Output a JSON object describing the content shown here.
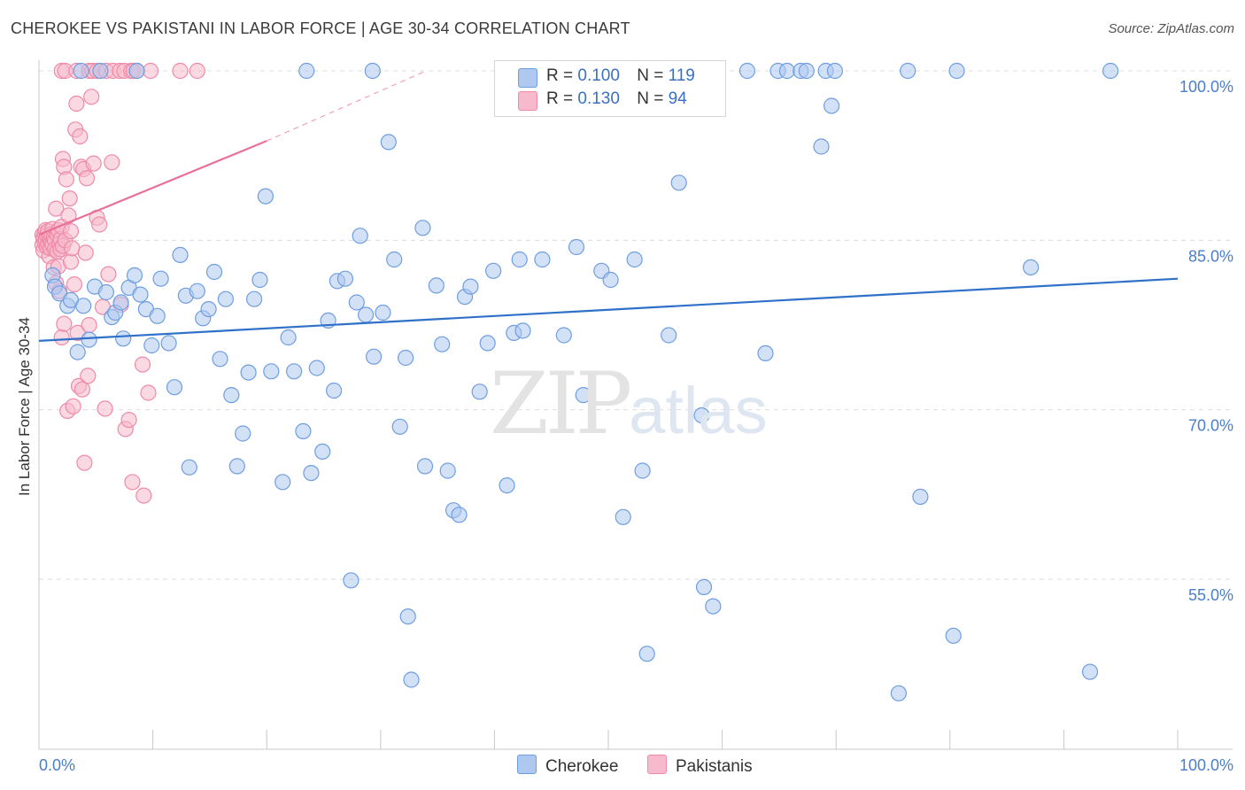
{
  "title": "CHEROKEE VS PAKISTANI IN LABOR FORCE | AGE 30-34 CORRELATION CHART",
  "source": "Source: ZipAtlas.com",
  "watermark": {
    "zip": "ZIP",
    "atlas": "atlas"
  },
  "legend": {
    "cherokee": {
      "r_label": "R = ",
      "r_value": "0.100",
      "n_label": "N = ",
      "n_value": "119"
    },
    "pakistani": {
      "r_label": "R = ",
      "r_value": "0.130",
      "n_label": "N = ",
      "n_value": "94"
    }
  },
  "bottom_legend": {
    "cherokee": "Cherokee",
    "pakistanis": "Pakistanis"
  },
  "colors": {
    "cherokee_fill": "#aec8f0",
    "cherokee_stroke": "#6e9ee0",
    "cherokee_line": "#2f70c8",
    "pakistani_fill": "#f7b9cc",
    "pakistani_stroke": "#ee8aa8",
    "pakistani_line": "#e8709a",
    "axis_text": "#4a7ecb",
    "grid": "#dcdcdc"
  },
  "chart_data": {
    "type": "scatter",
    "title": "CHEROKEE VS PAKISTANI IN LABOR FORCE | AGE 30-34 CORRELATION CHART",
    "xlabel": "",
    "ylabel": "In Labor Force | Age 30-34",
    "xlim": [
      0,
      100
    ],
    "ylim": [
      40.5,
      101.5
    ],
    "x_tick_labels": [
      "0.0%",
      "100.0%"
    ],
    "y_ticks": [
      100,
      85,
      70,
      55
    ],
    "y_tick_labels": [
      "100.0%",
      "85.0%",
      "70.0%",
      "55.0%"
    ],
    "series": [
      {
        "name": "Cherokee",
        "r": 0.1,
        "n": 119,
        "trend": {
          "x": [
            0,
            100
          ],
          "y": [
            76.1,
            81.6
          ]
        },
        "points": [
          [
            1.2,
            81.9
          ],
          [
            1.4,
            80.9
          ],
          [
            1.8,
            80.3
          ],
          [
            2.5,
            79.2
          ],
          [
            2.8,
            79.7
          ],
          [
            3.4,
            75.1
          ],
          [
            3.9,
            79.2
          ],
          [
            4.4,
            76.2
          ],
          [
            4.9,
            80.9
          ],
          [
            5.9,
            80.4
          ],
          [
            6.4,
            78.2
          ],
          [
            6.7,
            78.6
          ],
          [
            7.2,
            79.5
          ],
          [
            7.4,
            76.3
          ],
          [
            7.9,
            80.8
          ],
          [
            8.4,
            81.9
          ],
          [
            8.9,
            80.2
          ],
          [
            9.4,
            78.9
          ],
          [
            9.9,
            75.7
          ],
          [
            10.4,
            78.3
          ],
          [
            10.7,
            81.6
          ],
          [
            11.4,
            75.9
          ],
          [
            11.9,
            72.0
          ],
          [
            12.4,
            83.7
          ],
          [
            12.9,
            80.1
          ],
          [
            13.2,
            64.9
          ],
          [
            13.9,
            80.5
          ],
          [
            14.4,
            78.1
          ],
          [
            14.9,
            78.9
          ],
          [
            15.4,
            82.2
          ],
          [
            15.9,
            74.5
          ],
          [
            16.4,
            79.8
          ],
          [
            16.9,
            71.3
          ],
          [
            17.4,
            65.0
          ],
          [
            17.9,
            67.9
          ],
          [
            18.4,
            73.3
          ],
          [
            18.9,
            79.8
          ],
          [
            19.4,
            81.5
          ],
          [
            19.9,
            88.9
          ],
          [
            20.4,
            73.4
          ],
          [
            21.4,
            63.6
          ],
          [
            21.9,
            76.4
          ],
          [
            22.4,
            73.4
          ],
          [
            23.2,
            68.1
          ],
          [
            23.9,
            64.4
          ],
          [
            24.4,
            73.7
          ],
          [
            24.9,
            66.3
          ],
          [
            25.4,
            77.9
          ],
          [
            25.9,
            71.7
          ],
          [
            26.2,
            81.4
          ],
          [
            26.9,
            81.6
          ],
          [
            27.4,
            54.9
          ],
          [
            27.9,
            79.5
          ],
          [
            28.2,
            85.4
          ],
          [
            28.7,
            78.4
          ],
          [
            29.4,
            74.7
          ],
          [
            30.2,
            78.6
          ],
          [
            30.7,
            93.7
          ],
          [
            31.2,
            83.3
          ],
          [
            31.7,
            68.5
          ],
          [
            32.2,
            74.6
          ],
          [
            32.4,
            51.7
          ],
          [
            32.7,
            46.1
          ],
          [
            33.7,
            86.1
          ],
          [
            33.9,
            65.0
          ],
          [
            34.9,
            81.0
          ],
          [
            35.4,
            75.8
          ],
          [
            35.9,
            64.6
          ],
          [
            36.4,
            61.1
          ],
          [
            36.9,
            60.7
          ],
          [
            37.4,
            80.0
          ],
          [
            37.9,
            80.9
          ],
          [
            38.7,
            71.6
          ],
          [
            39.4,
            75.9
          ],
          [
            39.9,
            82.3
          ],
          [
            41.1,
            63.3
          ],
          [
            41.7,
            76.8
          ],
          [
            42.2,
            83.3
          ],
          [
            42.5,
            77.0
          ],
          [
            44.2,
            83.3
          ],
          [
            46.1,
            76.6
          ],
          [
            47.2,
            84.4
          ],
          [
            47.8,
            71.3
          ],
          [
            49.4,
            82.3
          ],
          [
            50.2,
            81.5
          ],
          [
            51.3,
            60.5
          ],
          [
            52.3,
            83.3
          ],
          [
            53.0,
            64.6
          ],
          [
            53.4,
            48.4
          ],
          [
            55.3,
            76.6
          ],
          [
            56.2,
            90.1
          ],
          [
            58.2,
            69.5
          ],
          [
            58.4,
            54.3
          ],
          [
            59.2,
            52.6
          ],
          [
            63.8,
            75.0
          ],
          [
            68.7,
            93.3
          ],
          [
            69.6,
            96.9
          ],
          [
            75.5,
            44.9
          ],
          [
            77.4,
            62.3
          ],
          [
            80.3,
            50.0
          ],
          [
            87.1,
            82.6
          ],
          [
            92.3,
            46.8
          ],
          [
            23.5,
            100
          ],
          [
            29.3,
            100
          ],
          [
            51.0,
            100
          ],
          [
            62.2,
            100
          ],
          [
            64.9,
            100
          ],
          [
            65.7,
            100
          ],
          [
            66.9,
            100
          ],
          [
            67.4,
            100
          ],
          [
            69.1,
            100
          ],
          [
            69.9,
            100
          ],
          [
            76.3,
            100
          ],
          [
            80.6,
            100
          ],
          [
            94.1,
            100
          ],
          [
            55.3,
            100
          ],
          [
            3.7,
            100
          ],
          [
            5.4,
            100
          ],
          [
            8.6,
            100
          ]
        ]
      },
      {
        "name": "Pakistanis",
        "r": 0.13,
        "n": 94,
        "trend": {
          "x": [
            0,
            20
          ],
          "y": [
            85.5,
            93.8
          ]
        },
        "trend_extension": {
          "x": [
            20,
            34
          ],
          "y": [
            93.8,
            100
          ]
        },
        "points": [
          [
            0.3,
            85.5
          ],
          [
            0.3,
            84.6
          ],
          [
            0.4,
            85.2
          ],
          [
            0.4,
            84.1
          ],
          [
            0.5,
            85.6
          ],
          [
            0.5,
            84.8
          ],
          [
            0.6,
            85.1
          ],
          [
            0.6,
            85.9
          ],
          [
            0.7,
            84.4
          ],
          [
            0.7,
            85.4
          ],
          [
            0.8,
            84.7
          ],
          [
            0.8,
            85.8
          ],
          [
            0.9,
            85.2
          ],
          [
            0.9,
            83.6
          ],
          [
            1.0,
            85.0
          ],
          [
            1.0,
            84.3
          ],
          [
            1.1,
            84.8
          ],
          [
            1.1,
            85.5
          ],
          [
            1.2,
            86.0
          ],
          [
            1.2,
            84.6
          ],
          [
            1.3,
            85.2
          ],
          [
            1.3,
            82.6
          ],
          [
            1.4,
            85.0
          ],
          [
            1.4,
            84.2
          ],
          [
            1.5,
            87.8
          ],
          [
            1.5,
            81.2
          ],
          [
            1.6,
            85.5
          ],
          [
            1.6,
            84.0
          ],
          [
            1.7,
            82.7
          ],
          [
            1.7,
            85.9
          ],
          [
            1.8,
            80.5
          ],
          [
            1.8,
            84.7
          ],
          [
            1.9,
            85.1
          ],
          [
            1.9,
            84.2
          ],
          [
            2.0,
            86.2
          ],
          [
            2.0,
            76.4
          ],
          [
            2.1,
            84.5
          ],
          [
            2.1,
            92.2
          ],
          [
            2.2,
            77.6
          ],
          [
            2.2,
            91.5
          ],
          [
            2.3,
            85.0
          ],
          [
            2.4,
            90.4
          ],
          [
            2.5,
            69.9
          ],
          [
            2.6,
            87.2
          ],
          [
            2.7,
            88.7
          ],
          [
            2.8,
            83.1
          ],
          [
            2.8,
            85.8
          ],
          [
            2.9,
            84.3
          ],
          [
            3.0,
            70.3
          ],
          [
            3.1,
            81.1
          ],
          [
            3.2,
            94.8
          ],
          [
            3.3,
            97.1
          ],
          [
            3.4,
            76.8
          ],
          [
            3.5,
            72.1
          ],
          [
            3.6,
            94.2
          ],
          [
            3.7,
            91.5
          ],
          [
            3.8,
            71.8
          ],
          [
            3.9,
            91.3
          ],
          [
            4.0,
            65.3
          ],
          [
            4.1,
            83.9
          ],
          [
            4.2,
            90.5
          ],
          [
            4.3,
            73.0
          ],
          [
            4.4,
            77.5
          ],
          [
            4.6,
            97.7
          ],
          [
            4.8,
            91.8
          ],
          [
            5.1,
            87.0
          ],
          [
            5.3,
            86.4
          ],
          [
            5.6,
            79.1
          ],
          [
            5.8,
            70.1
          ],
          [
            6.1,
            82.0
          ],
          [
            6.4,
            91.9
          ],
          [
            7.2,
            79.3
          ],
          [
            7.6,
            68.3
          ],
          [
            7.9,
            69.1
          ],
          [
            8.2,
            63.6
          ],
          [
            9.1,
            74.0
          ],
          [
            9.2,
            62.4
          ],
          [
            9.6,
            71.5
          ],
          [
            2.0,
            100
          ],
          [
            2.3,
            100
          ],
          [
            3.3,
            100
          ],
          [
            4.4,
            100
          ],
          [
            4.7,
            100
          ],
          [
            5.1,
            100
          ],
          [
            5.9,
            100
          ],
          [
            6.5,
            100
          ],
          [
            7.1,
            100
          ],
          [
            7.5,
            100
          ],
          [
            8.1,
            100
          ],
          [
            8.3,
            100
          ],
          [
            8.6,
            100
          ],
          [
            9.8,
            100
          ],
          [
            12.4,
            100
          ],
          [
            13.9,
            100
          ]
        ]
      }
    ]
  }
}
